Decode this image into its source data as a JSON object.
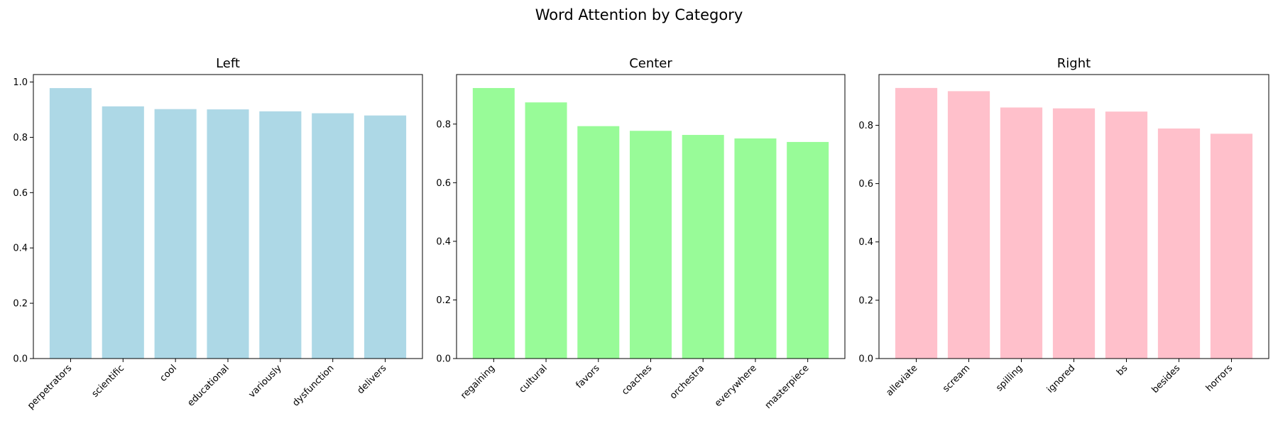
{
  "figure": {
    "title": "Word Attention by Category"
  },
  "chart_data": [
    {
      "type": "bar",
      "title": "Left",
      "color": "#add8e6",
      "categories": [
        "perpetrators",
        "scientific",
        "cool",
        "educational",
        "variously",
        "dysfunction",
        "delivers"
      ],
      "values": [
        0.978,
        0.912,
        0.902,
        0.901,
        0.894,
        0.887,
        0.879
      ],
      "ylim": [
        0,
        1.027
      ],
      "yticks": [
        0.0,
        0.2,
        0.4,
        0.6,
        0.8,
        1.0
      ],
      "ytick_labels": [
        "0.0",
        "0.2",
        "0.4",
        "0.6",
        "0.8",
        "1.0"
      ],
      "xlabel": "",
      "ylabel": ""
    },
    {
      "type": "bar",
      "title": "Center",
      "color": "#98fb98",
      "categories": [
        "regaining",
        "cultural",
        "favors",
        "coaches",
        "orchestra",
        "everywhere",
        "masterpiece"
      ],
      "values": [
        0.923,
        0.874,
        0.793,
        0.777,
        0.763,
        0.751,
        0.739
      ],
      "ylim": [
        0,
        0.969
      ],
      "yticks": [
        0.0,
        0.2,
        0.4,
        0.6,
        0.8
      ],
      "ytick_labels": [
        "0.0",
        "0.2",
        "0.4",
        "0.6",
        "0.8"
      ],
      "xlabel": "",
      "ylabel": ""
    },
    {
      "type": "bar",
      "title": "Right",
      "color": "#ffc0cb",
      "categories": [
        "alleviate",
        "scream",
        "spilling",
        "ignored",
        "bs",
        "besides",
        "horrors"
      ],
      "values": [
        0.928,
        0.917,
        0.861,
        0.858,
        0.847,
        0.789,
        0.771
      ],
      "ylim": [
        0,
        0.974
      ],
      "yticks": [
        0.0,
        0.2,
        0.4,
        0.6,
        0.8
      ],
      "ytick_labels": [
        "0.0",
        "0.2",
        "0.4",
        "0.6",
        "0.8"
      ],
      "xlabel": "",
      "ylabel": ""
    }
  ]
}
